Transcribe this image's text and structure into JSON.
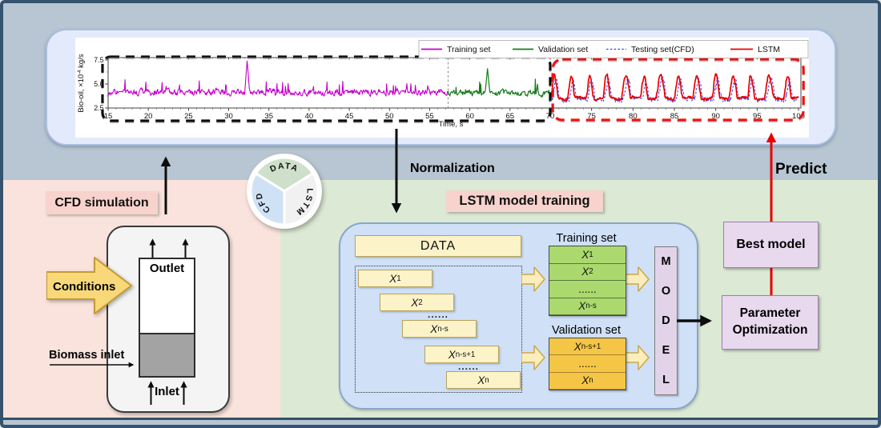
{
  "colors": {
    "outer_border": "#35536e",
    "top_band": "#b7c6d2",
    "cfd_region": "#f9e3dc",
    "lstm_region": "#dcead5",
    "pink_tag": "#f8d3cd",
    "chart_panel": "#e3eafb",
    "blue_panel": "#cfe0f7",
    "yellow_bar": "#fcf3c8",
    "train_green": "#abd96e",
    "val_amber": "#f5c646",
    "model_purple": "#e2d3e9",
    "best_model_purple": "#e8d9ee",
    "predict_red": "#e90000"
  },
  "chart_data": {
    "type": "line",
    "title": "",
    "xlabel": "Time, s",
    "ylabel": "Bio-oil, ×10⁻⁴ kg/s",
    "ylabel_parts": {
      "main": "Bio-oil, ×10",
      "sup": "-4",
      "rest": " kg/s"
    },
    "xlim": [
      15,
      100
    ],
    "ylim": [
      2.5,
      7.5
    ],
    "x_ticks": [
      15,
      20,
      25,
      30,
      35,
      40,
      45,
      50,
      55,
      60,
      65,
      70,
      75,
      80,
      85,
      90,
      95,
      100
    ],
    "y_ticks": [
      "2.5",
      "5.0",
      "7.5"
    ],
    "y_tick_values": [
      2.5,
      5.0,
      7.5
    ],
    "grid": false,
    "legend_position": "top-right inside plot, horizontal",
    "series": [
      {
        "name": "Training set",
        "color": "#c400c8",
        "style": "solid",
        "kind": "walk",
        "width": 1.1,
        "t_start": 15,
        "t_end": 57.3,
        "base": 4.15,
        "noise": 0.6,
        "spike_t": 32.3,
        "spike_v": 7.5,
        "seed": 9
      },
      {
        "name": "Validation set",
        "color": "#187a1c",
        "style": "solid",
        "kind": "walk",
        "width": 1.2,
        "t_start": 57.3,
        "t_end": 70,
        "base": 4.05,
        "noise": 0.55,
        "spike_t": 62.2,
        "spike_v": 6.6,
        "seed": 4
      },
      {
        "name": "Testing set(CFD)",
        "color": "#3b3bf0",
        "style": "dashed",
        "kind": "periodic",
        "width": 1.05,
        "t_start": 70,
        "t_end": 100,
        "base": 3.5,
        "amp": 2.4,
        "period": 2.15,
        "phase": -0.6,
        "scale": 0.82,
        "offset": 0.55,
        "noise": 0.55,
        "seed": 23
      },
      {
        "name": "LSTM",
        "color": "#e90000",
        "style": "solid",
        "kind": "periodic",
        "width": 1.7,
        "t_start": 70,
        "t_end": 100,
        "base": 3.5,
        "amp": 2.4,
        "period": 2.15,
        "phase": 0,
        "scale": 1,
        "offset": 0,
        "noise": 0.2,
        "seed": 23
      }
    ],
    "annotations": [
      {
        "label": "training+validation window",
        "shape": "dashed-rounded-box",
        "color": "#0d0d0d",
        "t_range": [
          14.3,
          70
        ]
      },
      {
        "label": "testing window",
        "shape": "dashed-rounded-box",
        "color": "#ee1111",
        "t_range": [
          70.3,
          100.6
        ]
      },
      {
        "label": "train/validation split",
        "shape": "dashed-vline",
        "color": "#888888",
        "t": 57.3
      }
    ],
    "note": "fluctuating signals are stochastic in the source figure; regenerated with seeded RNG to approximate amplitude, mean and spike structure"
  },
  "flow": {
    "normalization": "Normalization",
    "predict": "Predict"
  },
  "cfd": {
    "panel_label": "CFD simulation",
    "conditions": "Conditions",
    "outlet": "Outlet",
    "biomass_inlet": "Biomass inlet",
    "inlet": "Inlet"
  },
  "rosette": {
    "top": "DATA",
    "left": "CFD",
    "right": "LSTM"
  },
  "lstm_panel": {
    "panel_label": "LSTM model training",
    "data_bar": "DATA",
    "window_bars": [
      {
        "base": "X",
        "sub": "1"
      },
      {
        "base": "X",
        "sub": "2"
      },
      {
        "base": "X",
        "sub": "n-s"
      },
      {
        "base": "X",
        "sub": "n-s+1"
      },
      {
        "base": "X",
        "sub": "n"
      }
    ],
    "dots": "......",
    "training_set_label": "Training set",
    "training_rows": [
      {
        "base": "X",
        "sub": "1"
      },
      {
        "base": "X",
        "sub": "2"
      },
      {
        "text": "......"
      },
      {
        "base": "X",
        "sub": "n-s"
      }
    ],
    "validation_set_label": "Validation set",
    "validation_rows": [
      {
        "base": "X",
        "sub": "n-s+1"
      },
      {
        "text": "......"
      },
      {
        "base": "X",
        "sub": "n"
      }
    ],
    "model_letters": [
      "M",
      "O",
      "D",
      "E",
      "L"
    ]
  },
  "right_column": {
    "best_model": "Best model",
    "param_line1": "Parameter",
    "param_line2": "Optimization"
  }
}
